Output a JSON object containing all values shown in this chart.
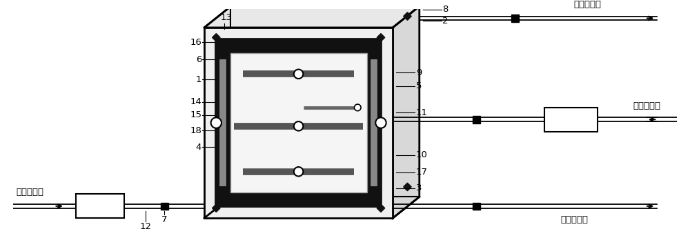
{
  "bg_color": "#ffffff",
  "lc": "#000000",
  "dark": "#111111",
  "labels": {
    "left_inlet": "阴极室进水",
    "right_top_out": "阴极室出水",
    "right_mid_in": "阳极室进水",
    "right_bot_out": "阳极室出水"
  },
  "figsize": [
    10.0,
    3.45
  ],
  "dpi": 100
}
